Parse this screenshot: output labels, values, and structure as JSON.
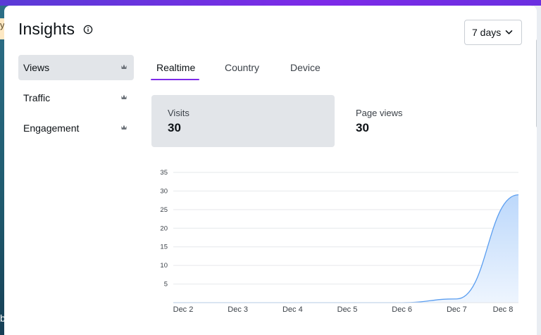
{
  "background": {
    "strip_char": "y",
    "bottom_char": "b"
  },
  "header": {
    "title": "Insights",
    "range_select": "7 days"
  },
  "sidebar": {
    "items": [
      {
        "label": "Views",
        "active": true
      },
      {
        "label": "Traffic",
        "active": false
      },
      {
        "label": "Engagement",
        "active": false
      }
    ]
  },
  "tabs": [
    {
      "label": "Realtime",
      "active": true
    },
    {
      "label": "Country",
      "active": false
    },
    {
      "label": "Device",
      "active": false
    }
  ],
  "metrics": [
    {
      "label": "Visits",
      "value": "30",
      "active": true
    },
    {
      "label": "Page views",
      "value": "30",
      "active": false
    }
  ],
  "colors": {
    "accent": "#7d2ae8",
    "line": "#5b9ef0",
    "fill_top": "#bcd8fb",
    "fill_bottom": "#eef5fe",
    "active_bg": "#e2e5e9"
  },
  "chart_data": {
    "type": "area",
    "categories": [
      "Dec 2",
      "Dec 3",
      "Dec 4",
      "Dec 5",
      "Dec 6",
      "Dec 7",
      "Dec 8"
    ],
    "values": [
      0,
      0,
      0,
      0,
      0,
      1,
      29
    ],
    "yticks": [
      5,
      10,
      15,
      20,
      25,
      30,
      35
    ],
    "ylim": [
      0,
      35
    ],
    "grid": true
  }
}
